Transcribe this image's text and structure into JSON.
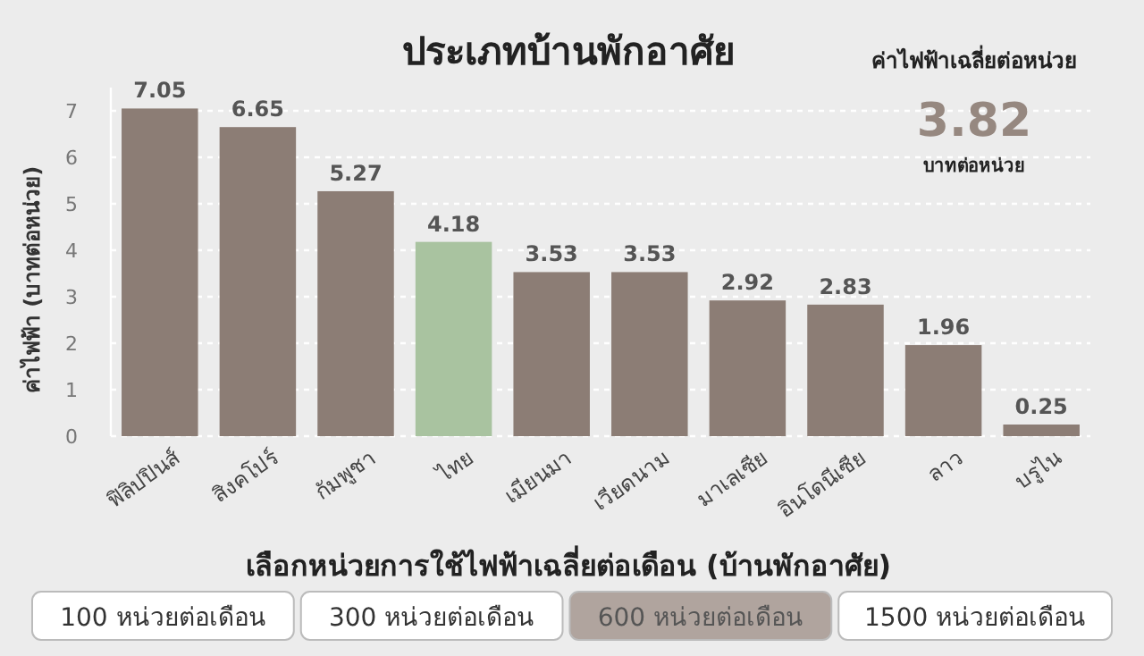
{
  "chart_data": {
    "type": "bar",
    "title": "ประเภทบ้านพักอาศัย",
    "categories": [
      "ฟิลิปปินส์",
      "สิงคโปร์",
      "กัมพูชา",
      "ไทย",
      "เมียนมา",
      "เวียดนาม",
      "มาเลเซีย",
      "อินโดนีเซีย",
      "ลาว",
      "บรูไน"
    ],
    "values": [
      7.05,
      6.65,
      5.27,
      4.18,
      3.53,
      3.53,
      2.92,
      2.83,
      1.96,
      0.25
    ],
    "colors": [
      "#8c7d75",
      "#8c7d75",
      "#8c7d75",
      "#a9c3a0",
      "#8c7d75",
      "#8c7d75",
      "#8c7d75",
      "#8c7d75",
      "#8c7d75",
      "#8c7d75"
    ],
    "ylabel": "ค่าไฟฟ้า (บาทต่อหน่วย)",
    "xlabel": "เลือกหน่วยการใช้ไฟฟ้าเฉลี่ยต่อเดือน (บ้านพักอาศัย)",
    "ylim": [
      0,
      7.5
    ],
    "yticks": [
      0,
      1,
      2,
      3,
      4,
      5,
      6,
      7
    ],
    "grid": "y",
    "data_labels": true,
    "annotations": [
      "ค่าไฟฟ้าเฉลี่ยต่อหน่วย",
      "3.82",
      "บาทต่อหน่วย",
      "100 หน่วยต่อเดือน",
      "300 หน่วยต่อเดือน",
      "600 หน่วยต่อเดือน",
      "1500 หน่วยต่อเดือน"
    ]
  }
}
